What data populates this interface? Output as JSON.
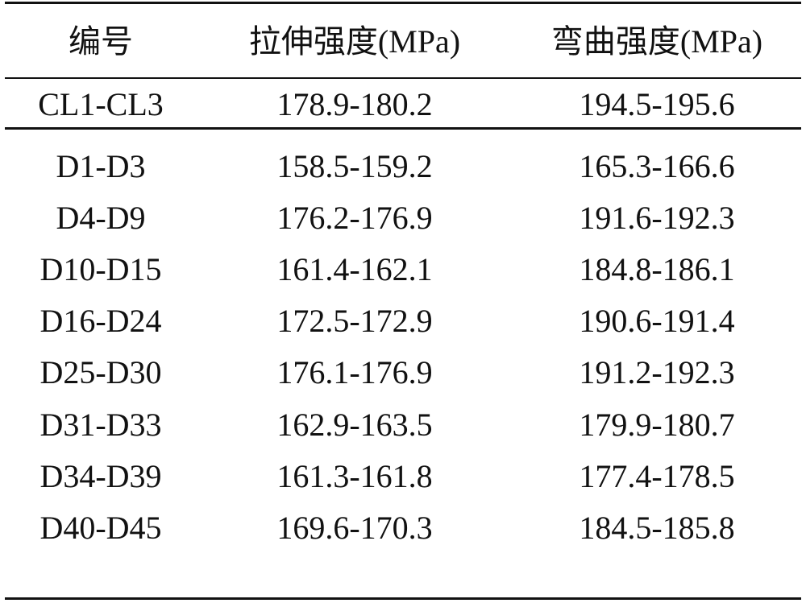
{
  "table": {
    "header": [
      "编号",
      "拉伸强度(MPa)",
      "弯曲强度(MPa)"
    ],
    "rows": [
      [
        "CL1-CL3",
        "178.9-180.2",
        "194.5-195.6"
      ],
      [
        "D1-D3",
        "158.5-159.2",
        "165.3-166.6"
      ],
      [
        "D4-D9",
        "176.2-176.9",
        "191.6-192.3"
      ],
      [
        "D10-D15",
        "161.4-162.1",
        "184.8-186.1"
      ],
      [
        "D16-D24",
        "172.5-172.9",
        "190.6-191.4"
      ],
      [
        "D25-D30",
        "176.1-176.9",
        "191.2-192.3"
      ],
      [
        "D31-D33",
        "162.9-163.5",
        "179.9-180.7"
      ],
      [
        "D34-D39",
        "161.3-161.8",
        "177.4-178.5"
      ],
      [
        "D40-D45",
        "169.6-170.3",
        "184.5-185.8"
      ]
    ]
  }
}
